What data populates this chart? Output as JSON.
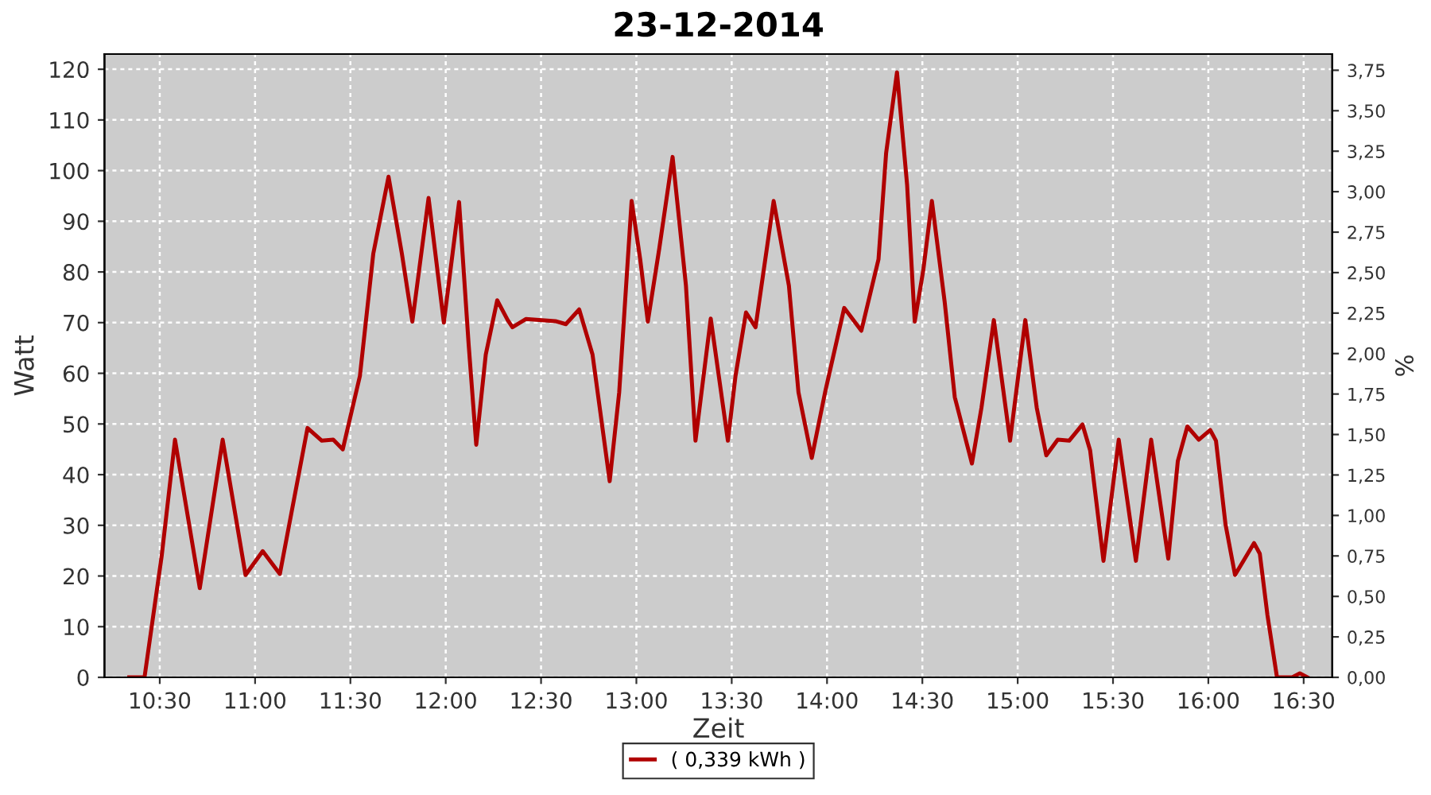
{
  "chart_data": {
    "type": "line",
    "title": "23-12-2014",
    "xlabel": "Zeit",
    "ylabel": "Watt",
    "y2label": "%",
    "x": [
      10.34,
      10.42,
      10.51,
      10.58,
      10.71,
      10.83,
      10.95,
      11.04,
      11.13,
      11.275,
      11.35,
      11.41,
      11.46,
      11.55,
      11.62,
      11.7,
      11.77,
      11.825,
      11.91,
      11.99,
      12.07,
      12.12,
      12.16,
      12.21,
      12.27,
      12.325,
      12.35,
      12.42,
      12.575,
      12.63,
      12.7,
      12.77,
      12.86,
      12.91,
      12.975,
      13.02,
      13.06,
      13.12,
      13.19,
      13.26,
      13.31,
      13.39,
      13.48,
      13.52,
      13.575,
      13.625,
      13.72,
      13.8,
      13.85,
      13.92,
      13.99,
      14.09,
      14.18,
      14.27,
      14.31,
      14.367,
      14.42,
      14.46,
      14.505,
      14.55,
      14.617,
      14.67,
      14.76,
      14.81,
      14.875,
      14.96,
      15.04,
      15.1,
      15.15,
      15.21,
      15.27,
      15.34,
      15.38,
      15.45,
      15.53,
      15.62,
      15.7,
      15.79,
      15.84,
      15.89,
      15.95,
      16.01,
      16.04,
      16.09,
      16.14,
      16.24,
      16.27,
      16.31,
      16.36,
      16.44,
      16.48,
      16.52
    ],
    "series": [
      {
        "name": "( 0,339 kWh )",
        "color": "#b00000",
        "values": [
          0,
          0,
          23.9,
          46.9,
          17.6,
          46.9,
          20.2,
          24.9,
          20.4,
          49.2,
          46.7,
          46.9,
          45.0,
          59.5,
          83.6,
          98.8,
          83.6,
          70.2,
          94.6,
          70.0,
          93.8,
          65.8,
          45.9,
          63.7,
          74.4,
          70.5,
          69.1,
          70.7,
          70.3,
          69.7,
          72.6,
          63.7,
          38.7,
          56.3,
          94.0,
          82.5,
          70.2,
          84.6,
          102.7,
          77.3,
          46.7,
          70.8,
          46.7,
          59.5,
          72.0,
          69.1,
          94.0,
          77.3,
          56.3,
          43.3,
          56.3,
          72.9,
          68.4,
          82.5,
          103.5,
          119.4,
          97.2,
          70.2,
          80.4,
          94.0,
          74.1,
          55.3,
          42.2,
          53.2,
          70.5,
          46.7,
          70.5,
          53.2,
          43.8,
          46.9,
          46.7,
          49.9,
          44.8,
          23.0,
          46.9,
          23.0,
          46.9,
          23.4,
          42.7,
          49.5,
          46.9,
          48.8,
          46.7,
          30.2,
          20.2,
          26.5,
          24.4,
          12.3,
          0,
          0,
          0.8,
          0
        ]
      }
    ],
    "xlim": [
      10.21,
      16.65
    ],
    "xticks": [
      {
        "value": 10.5,
        "label": "10:30"
      },
      {
        "value": 11.0,
        "label": "11:00"
      },
      {
        "value": 11.5,
        "label": "11:30"
      },
      {
        "value": 12.0,
        "label": "12:00"
      },
      {
        "value": 12.5,
        "label": "12:30"
      },
      {
        "value": 13.0,
        "label": "13:00"
      },
      {
        "value": 13.5,
        "label": "13:30"
      },
      {
        "value": 14.0,
        "label": "14:00"
      },
      {
        "value": 14.5,
        "label": "14:30"
      },
      {
        "value": 15.0,
        "label": "15:00"
      },
      {
        "value": 15.5,
        "label": "15:30"
      },
      {
        "value": 16.0,
        "label": "16:00"
      },
      {
        "value": 16.5,
        "label": "16:30"
      }
    ],
    "ylim": [
      0,
      123
    ],
    "yticks": [
      0,
      10,
      20,
      30,
      40,
      50,
      60,
      70,
      80,
      90,
      100,
      110,
      120
    ],
    "y2lim": [
      0,
      3.85
    ],
    "y2ticks": [
      {
        "value": 0,
        "label": "0,00"
      },
      {
        "value": 0.25,
        "label": "0,25"
      },
      {
        "value": 0.5,
        "label": "0,50"
      },
      {
        "value": 0.75,
        "label": "0,75"
      },
      {
        "value": 1.0,
        "label": "1,00"
      },
      {
        "value": 1.25,
        "label": "1,25"
      },
      {
        "value": 1.5,
        "label": "1,50"
      },
      {
        "value": 1.75,
        "label": "1,75"
      },
      {
        "value": 2.0,
        "label": "2,00"
      },
      {
        "value": 2.25,
        "label": "2,25"
      },
      {
        "value": 2.5,
        "label": "2,50"
      },
      {
        "value": 2.75,
        "label": "2,75"
      },
      {
        "value": 3.0,
        "label": "3,00"
      },
      {
        "value": 3.25,
        "label": "3,25"
      },
      {
        "value": 3.5,
        "label": "3,50"
      },
      {
        "value": 3.75,
        "label": "3,75"
      }
    ],
    "grid": true,
    "legend": "bottom",
    "marker": "none",
    "line_style": "solid"
  }
}
